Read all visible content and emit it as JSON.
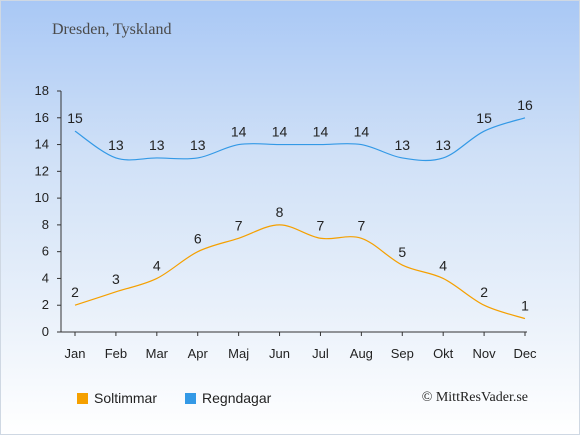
{
  "title": "Dresden, Tyskland",
  "credit": "© MittResVader.se",
  "chart_data": {
    "type": "line",
    "categories": [
      "Jan",
      "Feb",
      "Mar",
      "Apr",
      "Maj",
      "Jun",
      "Jul",
      "Aug",
      "Sep",
      "Okt",
      "Nov",
      "Dec"
    ],
    "ylim": [
      0,
      18
    ],
    "yticks": [
      0,
      2,
      4,
      6,
      8,
      10,
      12,
      14,
      16,
      18
    ],
    "grid": false,
    "legend_position": "bottom-left",
    "series": [
      {
        "name": "Soltimmar",
        "color": "#f5a000",
        "values": [
          2,
          3,
          4,
          6,
          7,
          8,
          7,
          7,
          5,
          4,
          2,
          1
        ]
      },
      {
        "name": "Regndagar",
        "color": "#3399e6",
        "values": [
          15,
          13,
          13,
          13,
          14,
          14,
          14,
          14,
          13,
          13,
          15,
          16
        ]
      }
    ]
  }
}
